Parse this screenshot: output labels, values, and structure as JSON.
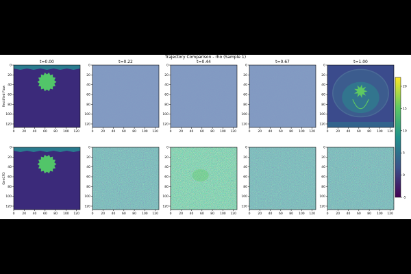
{
  "figure": {
    "suptitle": "Trajectory Comparison - rho (Sample 1)"
  },
  "chart_data": {
    "type": "heatmap",
    "title": "Trajectory Comparison - rho (Sample 1)",
    "columns": [
      "t=0.00",
      "t=0.22",
      "t=0.44",
      "t=0.67",
      "t=1.00"
    ],
    "rows": [
      "Rectified Flow",
      "GenCFD"
    ],
    "x_ticks": [
      0,
      20,
      40,
      60,
      80,
      100,
      120
    ],
    "y_ticks": [
      0,
      20,
      40,
      60,
      80,
      100,
      120
    ],
    "xlim": [
      0,
      127
    ],
    "ylim": [
      127,
      0
    ],
    "colorbar": {
      "min": -5,
      "max": 22,
      "ticks": [
        -5,
        0,
        5,
        10,
        15,
        20
      ],
      "colormap": "viridis"
    },
    "panels": [
      {
        "row": "Rectified Flow",
        "t": "t=0.00",
        "pattern": "initial-condition"
      },
      {
        "row": "Rectified Flow",
        "t": "t=0.22",
        "pattern": "low-noise"
      },
      {
        "row": "Rectified Flow",
        "t": "t=0.44",
        "pattern": "low-noise"
      },
      {
        "row": "Rectified Flow",
        "t": "t=0.67",
        "pattern": "low-noise"
      },
      {
        "row": "Rectified Flow",
        "t": "t=1.00",
        "pattern": "blast-wave"
      },
      {
        "row": "GenCFD",
        "t": "t=0.00",
        "pattern": "initial-condition"
      },
      {
        "row": "GenCFD",
        "t": "t=0.22",
        "pattern": "high-noise"
      },
      {
        "row": "GenCFD",
        "t": "t=0.44",
        "pattern": "medium-noise"
      },
      {
        "row": "GenCFD",
        "t": "t=0.67",
        "pattern": "high-noise"
      },
      {
        "row": "GenCFD",
        "t": "t=1.00",
        "pattern": "high-noise"
      }
    ]
  },
  "colors": {
    "viridis_low": "#440154",
    "viridis_dark": "#3b2a7a",
    "viridis_mid": "#21908d",
    "viridis_green": "#5ec962",
    "viridis_high": "#fde725",
    "blob": "#52c569",
    "background_field": "#3e3a8a"
  }
}
